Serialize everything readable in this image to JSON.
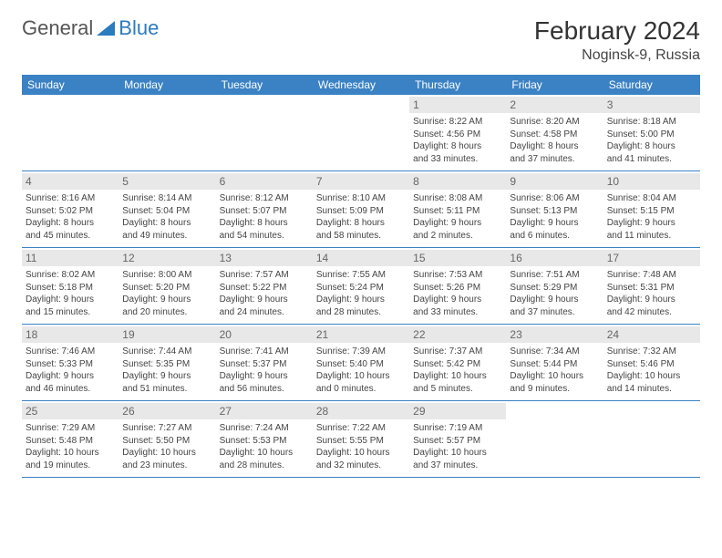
{
  "logo": {
    "text1": "General",
    "text2": "Blue"
  },
  "title": "February 2024",
  "location": "Noginsk-9, Russia",
  "colors": {
    "header_bg": "#3b82c4",
    "header_text": "#ffffff",
    "daynum_bg": "#e8e8e8",
    "daynum_text": "#666666",
    "border": "#3b82c4",
    "logo_accent": "#2b7bbf",
    "body_text": "#333333"
  },
  "day_names": [
    "Sunday",
    "Monday",
    "Tuesday",
    "Wednesday",
    "Thursday",
    "Friday",
    "Saturday"
  ],
  "weeks": [
    [
      null,
      null,
      null,
      null,
      {
        "n": "1",
        "sr": "Sunrise: 8:22 AM",
        "ss": "Sunset: 4:56 PM",
        "d1": "Daylight: 8 hours",
        "d2": "and 33 minutes."
      },
      {
        "n": "2",
        "sr": "Sunrise: 8:20 AM",
        "ss": "Sunset: 4:58 PM",
        "d1": "Daylight: 8 hours",
        "d2": "and 37 minutes."
      },
      {
        "n": "3",
        "sr": "Sunrise: 8:18 AM",
        "ss": "Sunset: 5:00 PM",
        "d1": "Daylight: 8 hours",
        "d2": "and 41 minutes."
      }
    ],
    [
      {
        "n": "4",
        "sr": "Sunrise: 8:16 AM",
        "ss": "Sunset: 5:02 PM",
        "d1": "Daylight: 8 hours",
        "d2": "and 45 minutes."
      },
      {
        "n": "5",
        "sr": "Sunrise: 8:14 AM",
        "ss": "Sunset: 5:04 PM",
        "d1": "Daylight: 8 hours",
        "d2": "and 49 minutes."
      },
      {
        "n": "6",
        "sr": "Sunrise: 8:12 AM",
        "ss": "Sunset: 5:07 PM",
        "d1": "Daylight: 8 hours",
        "d2": "and 54 minutes."
      },
      {
        "n": "7",
        "sr": "Sunrise: 8:10 AM",
        "ss": "Sunset: 5:09 PM",
        "d1": "Daylight: 8 hours",
        "d2": "and 58 minutes."
      },
      {
        "n": "8",
        "sr": "Sunrise: 8:08 AM",
        "ss": "Sunset: 5:11 PM",
        "d1": "Daylight: 9 hours",
        "d2": "and 2 minutes."
      },
      {
        "n": "9",
        "sr": "Sunrise: 8:06 AM",
        "ss": "Sunset: 5:13 PM",
        "d1": "Daylight: 9 hours",
        "d2": "and 6 minutes."
      },
      {
        "n": "10",
        "sr": "Sunrise: 8:04 AM",
        "ss": "Sunset: 5:15 PM",
        "d1": "Daylight: 9 hours",
        "d2": "and 11 minutes."
      }
    ],
    [
      {
        "n": "11",
        "sr": "Sunrise: 8:02 AM",
        "ss": "Sunset: 5:18 PM",
        "d1": "Daylight: 9 hours",
        "d2": "and 15 minutes."
      },
      {
        "n": "12",
        "sr": "Sunrise: 8:00 AM",
        "ss": "Sunset: 5:20 PM",
        "d1": "Daylight: 9 hours",
        "d2": "and 20 minutes."
      },
      {
        "n": "13",
        "sr": "Sunrise: 7:57 AM",
        "ss": "Sunset: 5:22 PM",
        "d1": "Daylight: 9 hours",
        "d2": "and 24 minutes."
      },
      {
        "n": "14",
        "sr": "Sunrise: 7:55 AM",
        "ss": "Sunset: 5:24 PM",
        "d1": "Daylight: 9 hours",
        "d2": "and 28 minutes."
      },
      {
        "n": "15",
        "sr": "Sunrise: 7:53 AM",
        "ss": "Sunset: 5:26 PM",
        "d1": "Daylight: 9 hours",
        "d2": "and 33 minutes."
      },
      {
        "n": "16",
        "sr": "Sunrise: 7:51 AM",
        "ss": "Sunset: 5:29 PM",
        "d1": "Daylight: 9 hours",
        "d2": "and 37 minutes."
      },
      {
        "n": "17",
        "sr": "Sunrise: 7:48 AM",
        "ss": "Sunset: 5:31 PM",
        "d1": "Daylight: 9 hours",
        "d2": "and 42 minutes."
      }
    ],
    [
      {
        "n": "18",
        "sr": "Sunrise: 7:46 AM",
        "ss": "Sunset: 5:33 PM",
        "d1": "Daylight: 9 hours",
        "d2": "and 46 minutes."
      },
      {
        "n": "19",
        "sr": "Sunrise: 7:44 AM",
        "ss": "Sunset: 5:35 PM",
        "d1": "Daylight: 9 hours",
        "d2": "and 51 minutes."
      },
      {
        "n": "20",
        "sr": "Sunrise: 7:41 AM",
        "ss": "Sunset: 5:37 PM",
        "d1": "Daylight: 9 hours",
        "d2": "and 56 minutes."
      },
      {
        "n": "21",
        "sr": "Sunrise: 7:39 AM",
        "ss": "Sunset: 5:40 PM",
        "d1": "Daylight: 10 hours",
        "d2": "and 0 minutes."
      },
      {
        "n": "22",
        "sr": "Sunrise: 7:37 AM",
        "ss": "Sunset: 5:42 PM",
        "d1": "Daylight: 10 hours",
        "d2": "and 5 minutes."
      },
      {
        "n": "23",
        "sr": "Sunrise: 7:34 AM",
        "ss": "Sunset: 5:44 PM",
        "d1": "Daylight: 10 hours",
        "d2": "and 9 minutes."
      },
      {
        "n": "24",
        "sr": "Sunrise: 7:32 AM",
        "ss": "Sunset: 5:46 PM",
        "d1": "Daylight: 10 hours",
        "d2": "and 14 minutes."
      }
    ],
    [
      {
        "n": "25",
        "sr": "Sunrise: 7:29 AM",
        "ss": "Sunset: 5:48 PM",
        "d1": "Daylight: 10 hours",
        "d2": "and 19 minutes."
      },
      {
        "n": "26",
        "sr": "Sunrise: 7:27 AM",
        "ss": "Sunset: 5:50 PM",
        "d1": "Daylight: 10 hours",
        "d2": "and 23 minutes."
      },
      {
        "n": "27",
        "sr": "Sunrise: 7:24 AM",
        "ss": "Sunset: 5:53 PM",
        "d1": "Daylight: 10 hours",
        "d2": "and 28 minutes."
      },
      {
        "n": "28",
        "sr": "Sunrise: 7:22 AM",
        "ss": "Sunset: 5:55 PM",
        "d1": "Daylight: 10 hours",
        "d2": "and 32 minutes."
      },
      {
        "n": "29",
        "sr": "Sunrise: 7:19 AM",
        "ss": "Sunset: 5:57 PM",
        "d1": "Daylight: 10 hours",
        "d2": "and 37 minutes."
      },
      null,
      null
    ]
  ]
}
